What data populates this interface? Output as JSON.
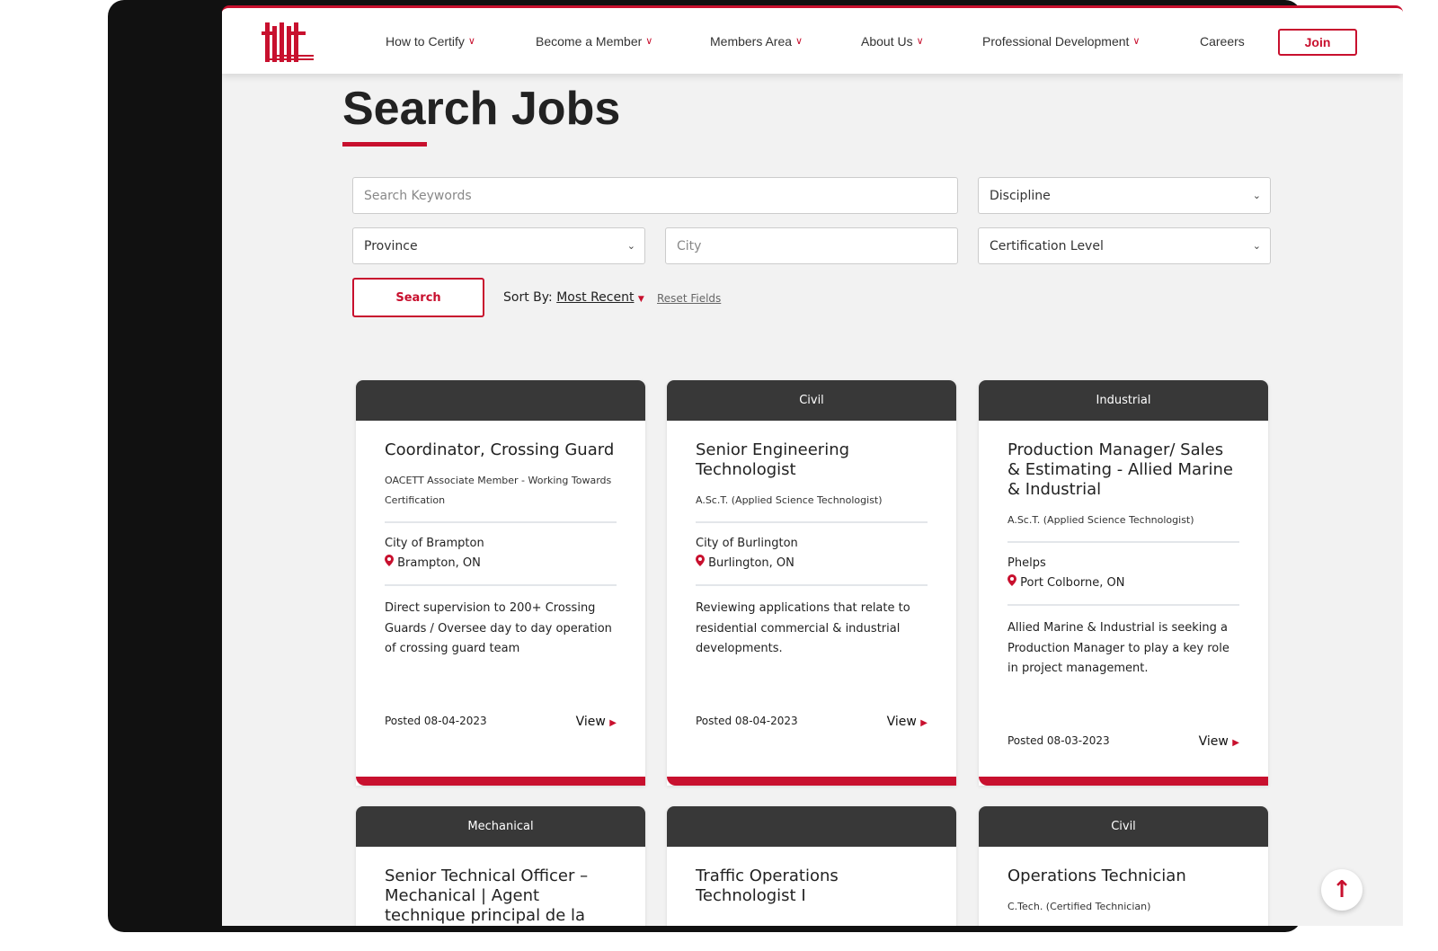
{
  "nav": {
    "items": [
      {
        "label": "How to Certify"
      },
      {
        "label": "Become a Member"
      },
      {
        "label": "Members Area"
      },
      {
        "label": "About Us"
      },
      {
        "label": "Professional Development"
      },
      {
        "label": "Careers"
      }
    ],
    "join": "Join"
  },
  "page": {
    "title": "Search Jobs"
  },
  "filters": {
    "keywords_placeholder": "Search Keywords",
    "discipline": "Discipline",
    "province": "Province",
    "city_placeholder": "City",
    "cert_level": "Certification Level",
    "search": "Search",
    "sort_label": "Sort By:",
    "sort_value": "Most Recent",
    "reset": "Reset Fields"
  },
  "jobs": [
    {
      "category": "",
      "title": "Coordinator, Crossing Guard",
      "cert": "OACETT Associate Member - Working Towards Certification",
      "employer": "City of Brampton",
      "location": "Brampton, ON",
      "desc": "Direct supervision to 200+ Crossing Guards / Oversee day to day operation of crossing guard team",
      "posted": "Posted 08-04-2023",
      "view": "View"
    },
    {
      "category": "Civil",
      "title": "Senior Engineering Technologist",
      "cert": "A.Sc.T. (Applied Science Technologist)",
      "employer": "City of Burlington",
      "location": "Burlington, ON",
      "desc": "Reviewing applications that relate to residential commercial & industrial developments.",
      "posted": "Posted 08-04-2023",
      "view": "View"
    },
    {
      "category": "Industrial",
      "title": "Production Manager/ Sales & Estimating - Allied Marine & Industrial",
      "cert": "A.Sc.T. (Applied Science Technologist)",
      "employer": "Phelps",
      "location": "Port Colborne, ON",
      "desc": "Allied Marine & Industrial is seeking a Production Manager to play a key role in project management.",
      "posted": "Posted 08-03-2023",
      "view": "View"
    },
    {
      "category": "Mechanical",
      "title": "Senior Technical Officer – Mechanical | Agent technique principal de la mécanique"
    },
    {
      "category": "",
      "title": "Traffic Operations Technologist I"
    },
    {
      "category": "Civil",
      "title": "Operations Technician",
      "cert": "C.Tech. (Certified Technician)"
    }
  ],
  "colors": {
    "accent": "#c8102e",
    "card_header": "#383838",
    "background": "#f2f2f2"
  }
}
